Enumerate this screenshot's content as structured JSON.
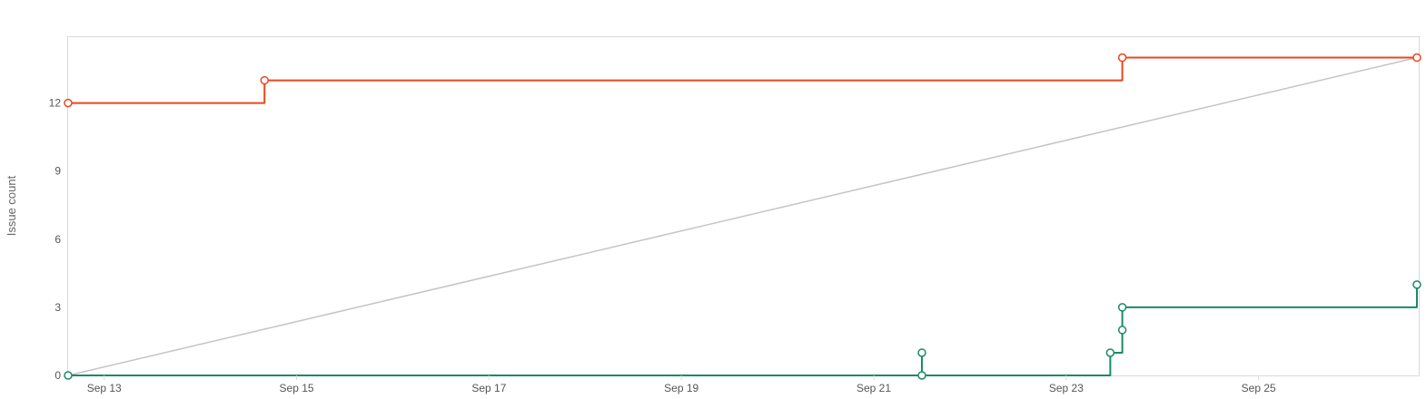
{
  "chart_data": {
    "type": "line",
    "title": "",
    "ylabel": "Issue count",
    "xlabel": "",
    "ylim": [
      0,
      14.9
    ],
    "xlim": [
      "2023-09-12 15:00",
      "2023-09-26 15:30"
    ],
    "yticks": [
      0,
      3,
      6,
      9,
      12
    ],
    "xticks": [
      {
        "date": "2023-09-13",
        "label": "Sep 13"
      },
      {
        "date": "2023-09-15",
        "label": "Sep 15"
      },
      {
        "date": "2023-09-17",
        "label": "Sep 17"
      },
      {
        "date": "2023-09-19",
        "label": "Sep 19"
      },
      {
        "date": "2023-09-21",
        "label": "Sep 21"
      },
      {
        "date": "2023-09-23",
        "label": "Sep 23"
      },
      {
        "date": "2023-09-25",
        "label": "Sep 25"
      }
    ],
    "grid": false,
    "series": [
      {
        "role": "scope",
        "style": "step",
        "color": "#e8471e",
        "markers": true,
        "points": [
          {
            "x": "2023-09-12 15:00",
            "y": 12
          },
          {
            "x": "2023-09-14 16:00",
            "y": 13
          },
          {
            "x": "2023-09-23 14:00",
            "y": 14
          },
          {
            "x": "2023-09-26 15:30",
            "y": 14
          }
        ]
      },
      {
        "role": "guideline",
        "style": "linear",
        "color": "#c4c4c4",
        "markers": false,
        "points": [
          {
            "x": "2023-09-12 15:00",
            "y": 0
          },
          {
            "x": "2023-09-26 15:30",
            "y": 14
          }
        ]
      },
      {
        "role": "completed",
        "style": "step",
        "color": "#1a8a64",
        "markers": true,
        "points": [
          {
            "x": "2023-09-12 15:00",
            "y": 0
          },
          {
            "x": "2023-09-21 12:00",
            "y": 1
          },
          {
            "x": "2023-09-21 12:00",
            "y": 0
          },
          {
            "x": "2023-09-23 11:00",
            "y": 1
          },
          {
            "x": "2023-09-23 14:00",
            "y": 2
          },
          {
            "x": "2023-09-23 14:00",
            "y": 3
          },
          {
            "x": "2023-09-26 15:30",
            "y": 4
          }
        ]
      }
    ]
  }
}
